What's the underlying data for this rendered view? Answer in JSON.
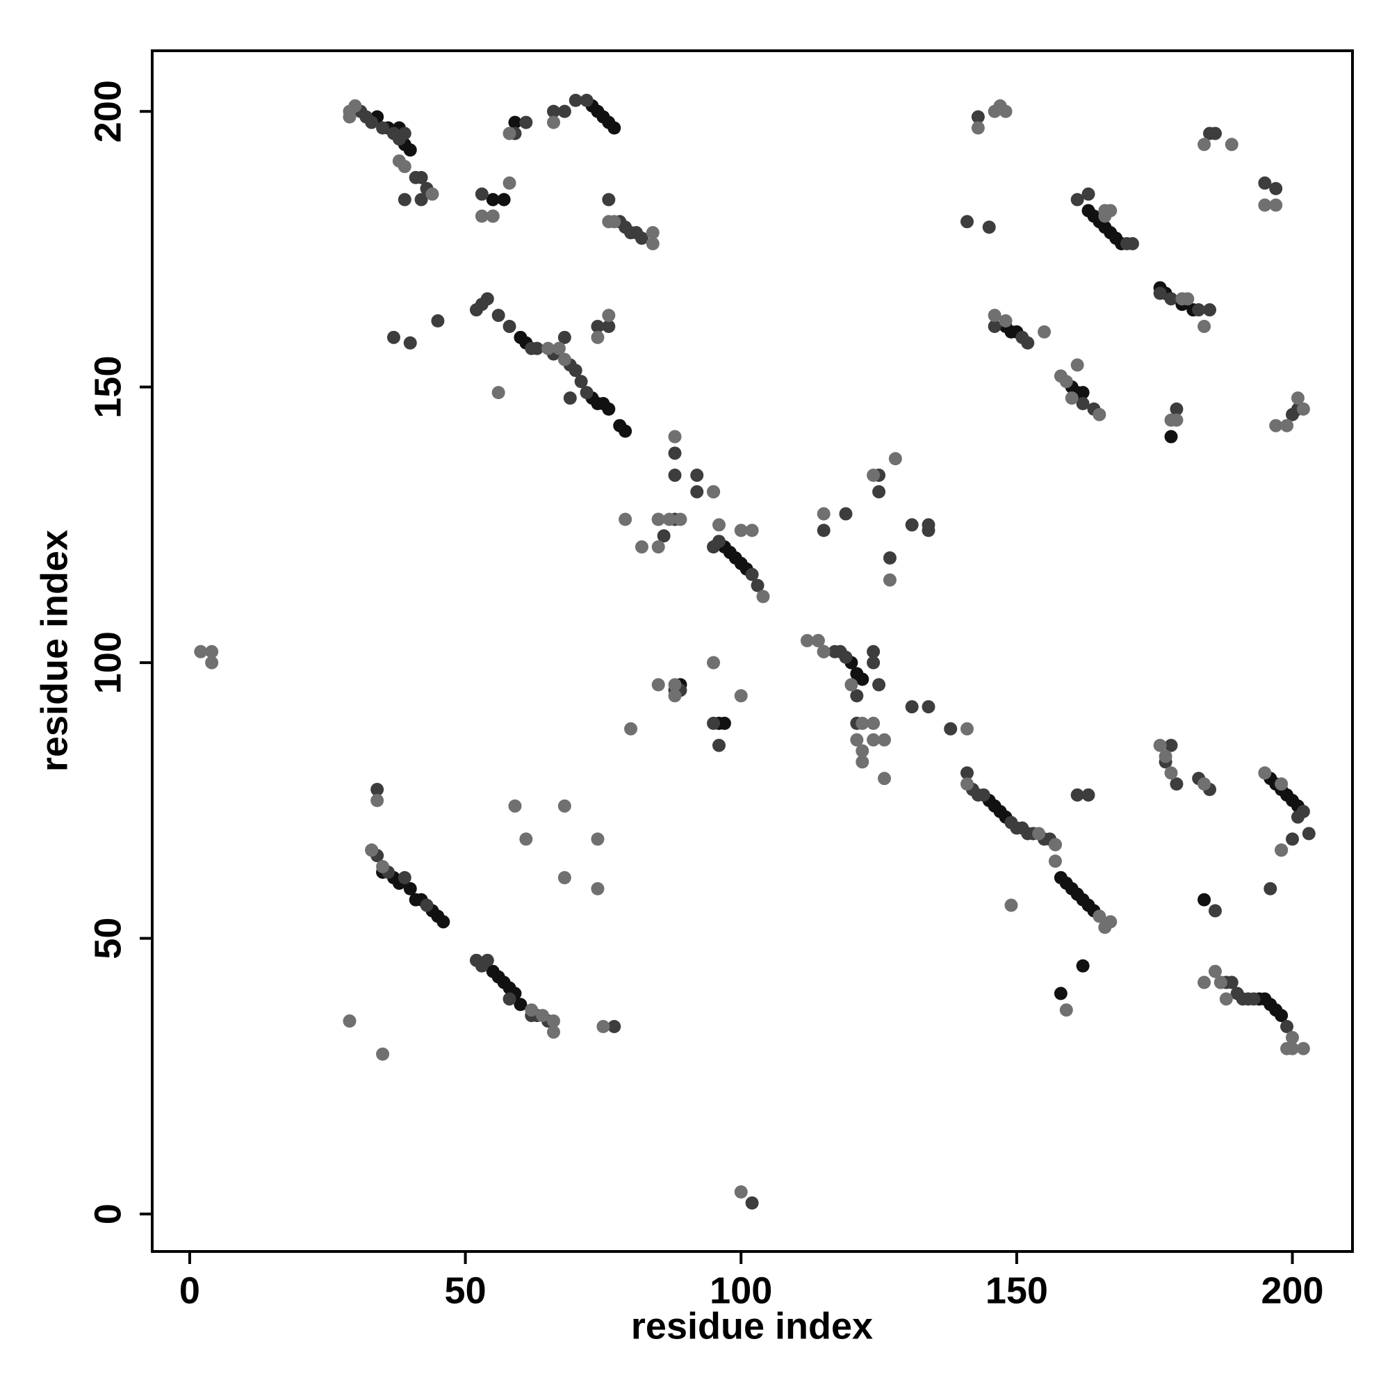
{
  "chart_data": {
    "type": "scatter",
    "xlabel": "residue index",
    "ylabel": "residue index",
    "xlim": [
      -6.8,
      210.9
    ],
    "ylim": [
      -6.8,
      211
    ],
    "xticks": [
      0,
      50,
      100,
      150,
      200
    ],
    "yticks": [
      0,
      50,
      100,
      150,
      200
    ],
    "series": [
      {
        "color": "#111111",
        "x": [
          34,
          36,
          38,
          39,
          40,
          73,
          74,
          75,
          76,
          77,
          55,
          57,
          59,
          60,
          61,
          73,
          74,
          75,
          76,
          78,
          79,
          97,
          98,
          99,
          100,
          101,
          120,
          121,
          122,
          35,
          37,
          38,
          40,
          41,
          42,
          44,
          45,
          46,
          55,
          56,
          57,
          58,
          59,
          60,
          145,
          146,
          147,
          148,
          158,
          159,
          160,
          161,
          162,
          163,
          164,
          196,
          197,
          198,
          199,
          200,
          201,
          194,
          195,
          196,
          197,
          198,
          163,
          164,
          165,
          166,
          167,
          168,
          169,
          176,
          177,
          180,
          182,
          148,
          149,
          150,
          160,
          161,
          162,
          96,
          97,
          89,
          178,
          162,
          158,
          184
        ],
        "y": [
          199,
          197,
          197,
          194,
          193,
          201,
          200,
          199,
          198,
          197,
          184,
          184,
          198,
          159,
          158,
          148,
          147,
          147,
          146,
          143,
          142,
          121,
          120,
          119,
          118,
          117,
          100,
          98,
          97,
          62,
          61,
          60,
          59,
          57,
          57,
          55,
          54,
          53,
          44,
          43,
          42,
          41,
          40,
          38,
          75,
          74,
          73,
          72,
          61,
          60,
          59,
          58,
          57,
          56,
          55,
          79,
          78,
          77,
          76,
          75,
          74,
          39,
          39,
          38,
          37,
          36,
          182,
          181,
          180,
          179,
          178,
          177,
          176,
          168,
          167,
          165,
          164,
          161,
          160,
          160,
          150,
          149,
          149,
          89,
          89,
          96,
          141,
          45,
          40,
          57
        ]
      },
      {
        "color": "#3d3d3d",
        "x": [
          31,
          32,
          33,
          35,
          37,
          38,
          39,
          41,
          42,
          43,
          42,
          39,
          59,
          61,
          66,
          68,
          70,
          72,
          53,
          55,
          76,
          78,
          79,
          80,
          81,
          82,
          37,
          40,
          45,
          52,
          53,
          54,
          56,
          58,
          62,
          63,
          66,
          68,
          69,
          70,
          71,
          72,
          69,
          74,
          76,
          88,
          88,
          92,
          92,
          95,
          85,
          86,
          88,
          95,
          96,
          102,
          103,
          115,
          119,
          125,
          125,
          127,
          131,
          134,
          134,
          114,
          115,
          117,
          118,
          119,
          121,
          124,
          125,
          124,
          121,
          131,
          134,
          138,
          95,
          96,
          88,
          89,
          34,
          33,
          34,
          36,
          39,
          43,
          52,
          53,
          54,
          58,
          62,
          63,
          65,
          77,
          141,
          142,
          143,
          144,
          149,
          150,
          151,
          152,
          153,
          155,
          156,
          157,
          161,
          163,
          178,
          177,
          179,
          183,
          185,
          202,
          201,
          203,
          200,
          198,
          196,
          186,
          187,
          188,
          189,
          190,
          191,
          192,
          193,
          199,
          143,
          141,
          145,
          185,
          186,
          195,
          197,
          161,
          163,
          171,
          170,
          176,
          178,
          183,
          185,
          151,
          152,
          146,
          162,
          164,
          179,
          200,
          201,
          102
        ],
        "y": [
          200,
          199,
          198,
          197,
          196,
          195,
          196,
          188,
          188,
          186,
          184,
          184,
          196,
          198,
          200,
          200,
          202,
          202,
          185,
          181,
          184,
          180,
          179,
          178,
          178,
          177,
          159,
          158,
          162,
          164,
          165,
          166,
          163,
          161,
          157,
          157,
          156,
          159,
          154,
          153,
          151,
          149,
          148,
          161,
          161,
          138,
          134,
          134,
          131,
          131,
          126,
          123,
          126,
          121,
          122,
          116,
          114,
          124,
          127,
          134,
          131,
          119,
          125,
          125,
          124,
          104,
          102,
          102,
          102,
          101,
          94,
          102,
          96,
          100,
          89,
          92,
          92,
          88,
          89,
          85,
          95,
          95,
          77,
          66,
          65,
          62,
          61,
          56,
          46,
          45,
          46,
          39,
          36,
          36,
          35,
          34,
          80,
          77,
          76,
          76,
          71,
          70,
          70,
          69,
          69,
          68,
          68,
          67,
          76,
          76,
          85,
          82,
          78,
          79,
          77,
          73,
          72,
          69,
          68,
          66,
          59,
          55,
          42,
          42,
          42,
          40,
          39,
          39,
          39,
          34,
          199,
          180,
          179,
          196,
          196,
          187,
          186,
          184,
          185,
          176,
          176,
          167,
          166,
          164,
          164,
          159,
          158,
          161,
          147,
          146,
          146,
          145,
          146,
          2
        ]
      },
      {
        "color": "#707070",
        "x": [
          29,
          29,
          30,
          39,
          38,
          44,
          58,
          66,
          53,
          55,
          58,
          76,
          77,
          84,
          84,
          68,
          65,
          67,
          56,
          74,
          76,
          88,
          95,
          79,
          82,
          85,
          85,
          87,
          89,
          96,
          100,
          102,
          104,
          115,
          124,
          127,
          128,
          112,
          114,
          115,
          120,
          122,
          121,
          122,
          124,
          124,
          126,
          122,
          126,
          141,
          100,
          95,
          80,
          85,
          88,
          88,
          2,
          4,
          4,
          33,
          34,
          35,
          29,
          35,
          59,
          61,
          68,
          68,
          74,
          74,
          62,
          64,
          66,
          66,
          75,
          141,
          154,
          157,
          157,
          165,
          166,
          167,
          149,
          159,
          176,
          177,
          178,
          184,
          195,
          198,
          198,
          184,
          186,
          187,
          188,
          199,
          200,
          200,
          202,
          143,
          146,
          147,
          148,
          184,
          189,
          195,
          197,
          166,
          167,
          166,
          180,
          181,
          184,
          155,
          146,
          148,
          158,
          159,
          160,
          161,
          165,
          179,
          178,
          197,
          199,
          201,
          202,
          100
        ],
        "y": [
          199,
          200,
          201,
          190,
          191,
          185,
          187,
          198,
          181,
          181,
          196,
          180,
          180,
          178,
          176,
          155,
          157,
          157,
          149,
          159,
          163,
          141,
          131,
          126,
          121,
          126,
          121,
          126,
          126,
          125,
          124,
          124,
          112,
          127,
          134,
          115,
          137,
          104,
          104,
          102,
          96,
          89,
          86,
          84,
          89,
          86,
          86,
          82,
          79,
          88,
          94,
          100,
          88,
          96,
          96,
          94,
          102,
          102,
          100,
          66,
          75,
          63,
          35,
          29,
          74,
          68,
          74,
          61,
          68,
          59,
          37,
          36,
          33,
          35,
          34,
          78,
          69,
          67,
          64,
          54,
          52,
          53,
          56,
          37,
          85,
          83,
          80,
          78,
          80,
          78,
          66,
          42,
          44,
          42,
          39,
          30,
          30,
          32,
          30,
          197,
          200,
          201,
          200,
          194,
          194,
          183,
          183,
          181,
          182,
          182,
          166,
          166,
          161,
          160,
          163,
          162,
          152,
          151,
          148,
          154,
          145,
          144,
          144,
          143,
          143,
          148,
          146,
          4
        ]
      }
    ]
  }
}
